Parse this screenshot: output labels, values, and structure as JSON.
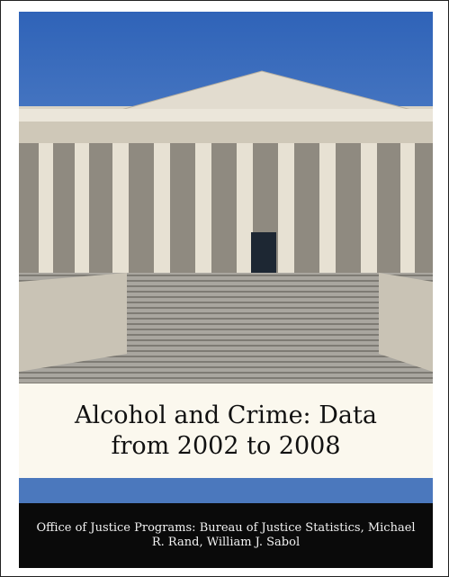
{
  "cover": {
    "title": "Alcohol and Crime: Data from 2002 to 2008",
    "authors": "Office of Justice Programs: Bureau of Justice Statistics, Michael R. Rand, William J. Sabol"
  }
}
